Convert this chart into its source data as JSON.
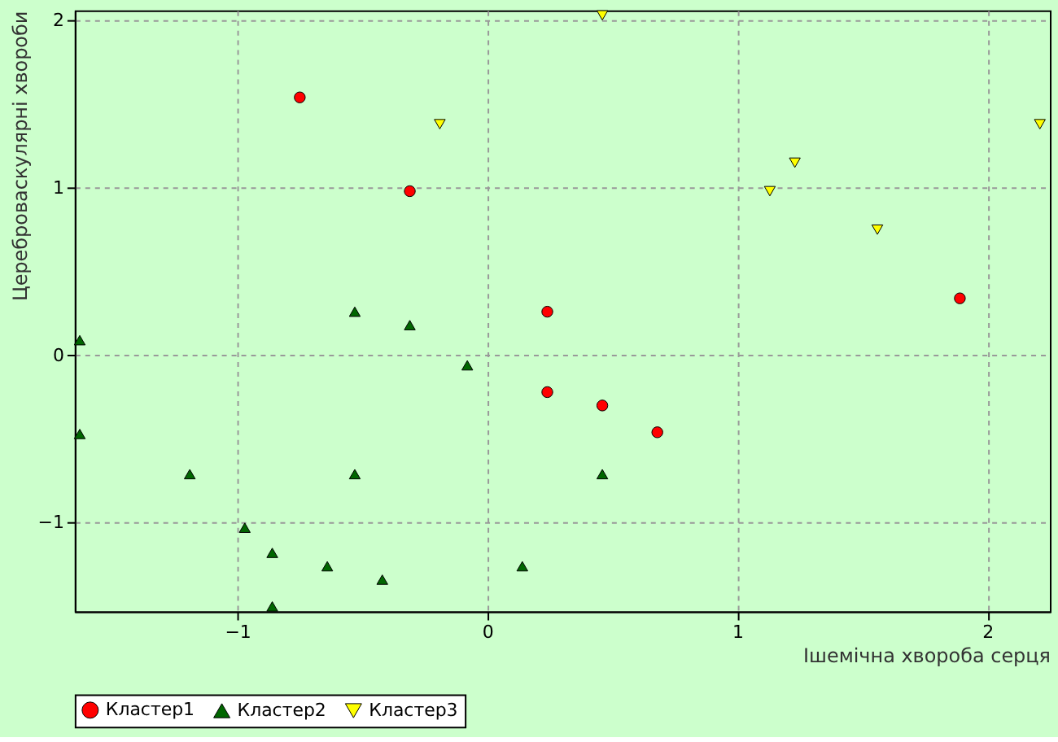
{
  "chart_data": {
    "type": "scatter",
    "xlabel": "Ішемічна хвороба серця",
    "ylabel": "Цереброваскулярні хвороби",
    "xlim": [
      -1.65,
      2.25
    ],
    "ylim": [
      -1.53,
      2.06
    ],
    "xticks": [
      -1,
      0,
      1,
      2
    ],
    "yticks": [
      -1,
      0,
      1,
      2
    ],
    "grid": true,
    "legend": "bottom left",
    "series": [
      {
        "name": "Кластер1",
        "color": "#ff0000",
        "marker": "circle",
        "x": [
          -0.75,
          -0.31,
          0.24,
          0.24,
          0.46,
          0.68,
          1.89
        ],
        "values": [
          1.54,
          0.98,
          0.26,
          -0.22,
          -0.3,
          -0.46,
          0.34
        ]
      },
      {
        "name": "Кластер2",
        "color": "#006600",
        "marker": "triangle",
        "x": [
          -1.63,
          -1.63,
          -1.19,
          -0.97,
          -0.86,
          -0.86,
          -0.64,
          -0.42,
          -0.53,
          -0.31,
          -0.08,
          -0.53,
          0.14,
          0.46
        ],
        "values": [
          0.09,
          -0.47,
          -0.71,
          -1.03,
          -1.18,
          -1.5,
          -1.26,
          -1.34,
          0.26,
          0.18,
          -0.06,
          -0.71,
          -1.26,
          -0.71
        ]
      },
      {
        "name": "Кластер3",
        "color": "#ffff00",
        "marker": "triangle-down",
        "x": [
          0.46,
          -0.19,
          1.13,
          1.23,
          1.56,
          2.21
        ],
        "values": [
          2.03,
          1.38,
          0.98,
          1.15,
          0.75,
          1.38
        ]
      }
    ]
  }
}
